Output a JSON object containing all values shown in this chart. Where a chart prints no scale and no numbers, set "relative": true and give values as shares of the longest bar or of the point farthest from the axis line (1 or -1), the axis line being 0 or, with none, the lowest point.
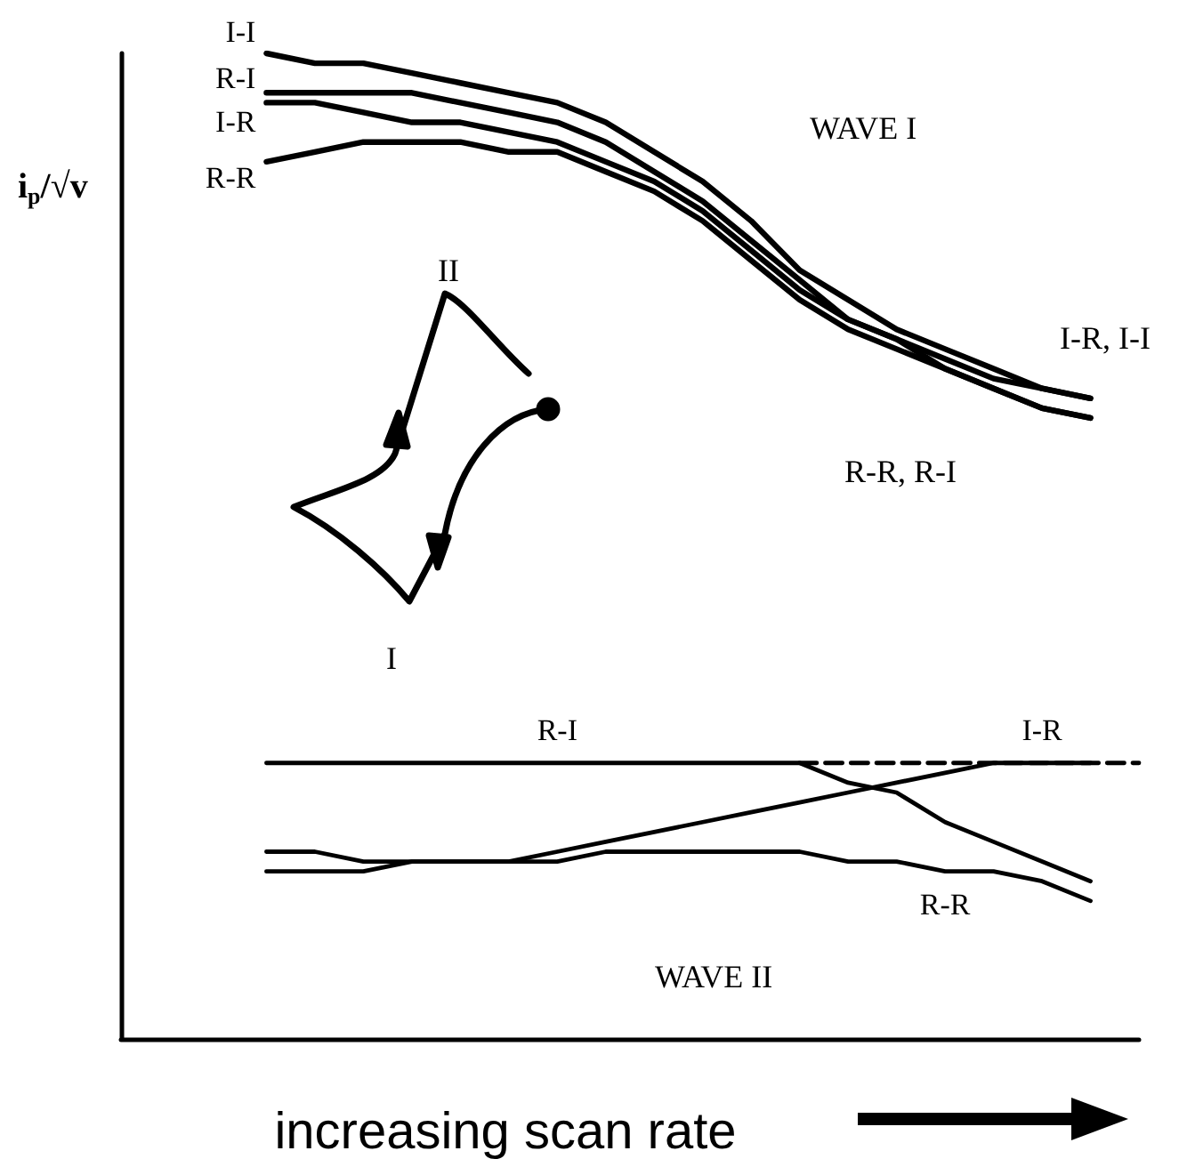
{
  "chart_data": {
    "type": "line",
    "xlabel": "increasing scan rate",
    "ylabel": "i$_{p}$/√v",
    "relative": true,
    "legend": false,
    "grid": false,
    "marker": "none",
    "categories": [
      null,
      null,
      null,
      null,
      null,
      null,
      null,
      null,
      null,
      null,
      null,
      null,
      null,
      null,
      null,
      null,
      null,
      null,
      null,
      null,
      null,
      null
    ],
    "annotations": [
      "WAVE I",
      "WAVE II",
      "I-R, I-I",
      "R-R, R-I",
      "II",
      "I"
    ],
    "series": [
      {
        "name": "I-I",
        "color": "#000000",
        "values": [
          null,
          null,
          null,
          1,
          0.99,
          0.99,
          0.98,
          0.97,
          0.96,
          0.95,
          0.93,
          0.9,
          0.87,
          0.83,
          0.78,
          0.75,
          0.72,
          0.7,
          0.68,
          0.66,
          0.65,
          null
        ]
      },
      {
        "name": "R-I",
        "color": "#000000",
        "values": [
          null,
          null,
          null,
          0.96,
          0.96,
          0.96,
          0.96,
          0.95,
          0.94,
          0.93,
          0.91,
          0.88,
          0.85,
          0.81,
          0.77,
          0.73,
          0.71,
          0.68,
          0.66,
          0.64,
          0.63,
          null
        ]
      },
      {
        "name": "I-R",
        "color": "#000000",
        "values": [
          null,
          null,
          null,
          0.95,
          0.95,
          0.94,
          0.93,
          0.93,
          0.92,
          0.91,
          0.89,
          0.87,
          0.84,
          0.8,
          0.76,
          0.73,
          0.71,
          0.69,
          0.67,
          0.66,
          0.65,
          null
        ]
      },
      {
        "name": "R-R",
        "color": "#000000",
        "values": [
          null,
          null,
          null,
          0.89,
          0.9,
          0.91,
          0.91,
          0.91,
          0.9,
          0.9,
          0.88,
          0.86,
          0.83,
          0.79,
          0.75,
          0.72,
          0.7,
          0.68,
          0.66,
          0.64,
          0.63,
          null
        ]
      },
      {
        "name": "R-I",
        "color": "#000000",
        "values": [
          null,
          null,
          null,
          0.28,
          0.28,
          0.28,
          0.28,
          0.28,
          0.28,
          0.28,
          0.28,
          0.28,
          0.28,
          0.28,
          0.28,
          0.26,
          0.25,
          0.22,
          0.2,
          0.18,
          0.16,
          null
        ]
      },
      {
        "name": "I-R",
        "color": "#000000",
        "values": [
          null,
          null,
          null,
          0.17,
          0.17,
          0.17,
          0.18,
          0.18,
          0.18,
          0.19,
          0.2,
          0.21,
          0.22,
          0.23,
          0.24,
          0.25,
          0.26,
          0.27,
          0.28,
          0.28,
          0.28,
          null
        ]
      },
      {
        "name": "R-R",
        "color": "#000000",
        "values": [
          null,
          null,
          null,
          0.19,
          0.19,
          0.18,
          0.18,
          0.18,
          0.18,
          0.18,
          0.19,
          0.19,
          0.19,
          0.19,
          0.19,
          0.18,
          0.18,
          0.17,
          0.17,
          0.16,
          0.14,
          null
        ]
      },
      {
        "color": "#000000",
        "line_style": "dashed",
        "values": [
          null,
          null,
          null,
          null,
          null,
          null,
          null,
          null,
          null,
          null,
          null,
          null,
          null,
          null,
          0.28,
          0.28,
          0.28,
          0.28,
          0.28,
          0.28,
          0.28,
          0.28
        ]
      }
    ]
  }
}
